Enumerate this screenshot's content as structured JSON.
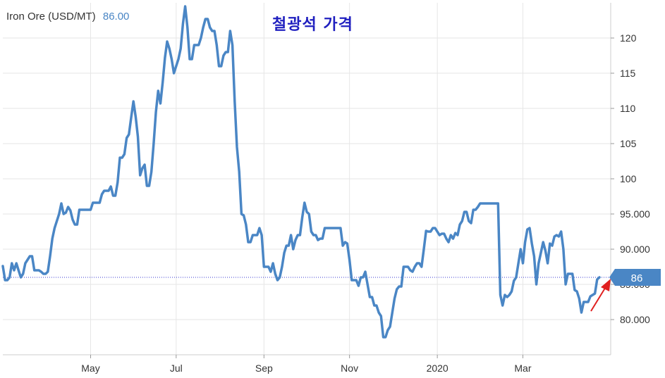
{
  "header": {
    "label": "Iron Ore (USD/MT)",
    "price": "86.00"
  },
  "annotation": {
    "title": "철광석 가격"
  },
  "colors": {
    "line": "#4a86c5",
    "badge": "#4a86c5",
    "grid": "#e6e6e6",
    "reference_line": "#3a3ad0",
    "arrow": "#e02020",
    "title_text": "#1f1fbf"
  },
  "chart_data": {
    "type": "line",
    "title": "Iron Ore (USD/MT)",
    "current_value": 86,
    "current_value_label": "86",
    "ylim": [
      75,
      125
    ],
    "xlim": [
      0,
      265
    ],
    "x_tick_labels": [
      "May",
      "Jul",
      "Sep",
      "Nov",
      "2020",
      "Mar"
    ],
    "x_tick_positions": [
      39,
      77,
      116,
      154,
      193,
      231
    ],
    "y_ticks": [
      {
        "value": 80,
        "label": "80.000"
      },
      {
        "value": 85,
        "label": "85.000"
      },
      {
        "value": 90,
        "label": "90.000"
      },
      {
        "value": 95,
        "label": "95.000"
      },
      {
        "value": 100,
        "label": "100"
      },
      {
        "value": 105,
        "label": "105"
      },
      {
        "value": 110,
        "label": "110"
      },
      {
        "value": 115,
        "label": "115"
      },
      {
        "value": 120,
        "label": "120"
      }
    ],
    "series": [
      {
        "name": "Iron Ore",
        "points": [
          [
            0,
            87.6
          ],
          [
            1,
            85.6
          ],
          [
            2,
            85.6
          ],
          [
            3,
            86.0
          ],
          [
            4,
            88.0
          ],
          [
            5,
            87.0
          ],
          [
            6,
            88.0
          ],
          [
            7,
            87.0
          ],
          [
            8,
            86.0
          ],
          [
            9,
            86.5
          ],
          [
            10,
            88.0
          ],
          [
            11,
            88.5
          ],
          [
            12,
            89.0
          ],
          [
            13,
            89.0
          ],
          [
            14,
            87.0
          ],
          [
            15,
            87.0
          ],
          [
            16,
            87.0
          ],
          [
            17,
            86.8
          ],
          [
            18,
            86.5
          ],
          [
            19,
            86.5
          ],
          [
            20,
            86.8
          ],
          [
            21,
            89.0
          ],
          [
            22,
            91.5
          ],
          [
            23,
            93.0
          ],
          [
            24,
            94.0
          ],
          [
            25,
            95.0
          ],
          [
            26,
            96.5
          ],
          [
            27,
            95.0
          ],
          [
            28,
            95.2
          ],
          [
            29,
            96.0
          ],
          [
            30,
            95.5
          ],
          [
            31,
            94.2
          ],
          [
            32,
            93.5
          ],
          [
            33,
            93.5
          ],
          [
            34,
            95.6
          ],
          [
            35,
            95.6
          ],
          [
            36,
            95.6
          ],
          [
            37,
            95.6
          ],
          [
            38,
            95.6
          ],
          [
            39,
            95.6
          ],
          [
            40,
            96.6
          ],
          [
            41,
            96.6
          ],
          [
            42,
            96.6
          ],
          [
            43,
            96.6
          ],
          [
            44,
            97.8
          ],
          [
            45,
            98.3
          ],
          [
            46,
            98.3
          ],
          [
            47,
            98.3
          ],
          [
            48,
            98.9
          ],
          [
            49,
            97.6
          ],
          [
            50,
            97.6
          ],
          [
            51,
            99.5
          ],
          [
            52,
            103.0
          ],
          [
            53,
            103.0
          ],
          [
            54,
            103.5
          ],
          [
            55,
            105.8
          ],
          [
            56,
            106.3
          ],
          [
            57,
            108.7
          ],
          [
            58,
            111.0
          ],
          [
            59,
            108.8
          ],
          [
            60,
            106.0
          ],
          [
            61,
            100.5
          ],
          [
            62,
            101.5
          ],
          [
            63,
            102.0
          ],
          [
            64,
            99.0
          ],
          [
            65,
            99.0
          ],
          [
            66,
            101.0
          ],
          [
            67,
            105.0
          ],
          [
            68,
            109.5
          ],
          [
            69,
            112.5
          ],
          [
            70,
            110.7
          ],
          [
            71,
            113.7
          ],
          [
            72,
            117.2
          ],
          [
            73,
            119.5
          ],
          [
            74,
            118.5
          ],
          [
            75,
            117.0
          ],
          [
            76,
            115.0
          ],
          [
            77,
            116.0
          ],
          [
            78,
            117.0
          ],
          [
            79,
            118.5
          ],
          [
            80,
            122.0
          ],
          [
            81,
            124.5
          ],
          [
            82,
            121.5
          ],
          [
            83,
            117.0
          ],
          [
            84,
            117.0
          ],
          [
            85,
            119.0
          ],
          [
            86,
            119.0
          ],
          [
            87,
            119.0
          ],
          [
            88,
            120.0
          ],
          [
            89,
            121.5
          ],
          [
            90,
            122.7
          ],
          [
            91,
            122.7
          ],
          [
            92,
            121.5
          ],
          [
            93,
            121.0
          ],
          [
            94,
            121.0
          ],
          [
            95,
            119.0
          ],
          [
            96,
            116.0
          ],
          [
            97,
            116.0
          ],
          [
            98,
            117.5
          ],
          [
            99,
            118.0
          ],
          [
            100,
            118.0
          ],
          [
            101,
            121.0
          ],
          [
            102,
            119.0
          ],
          [
            103,
            111.0
          ],
          [
            104,
            104.5
          ],
          [
            105,
            101.0
          ],
          [
            106,
            95.0
          ],
          [
            107,
            94.8
          ],
          [
            108,
            93.5
          ],
          [
            109,
            91.0
          ],
          [
            110,
            91.0
          ],
          [
            111,
            92.0
          ],
          [
            112,
            92.0
          ],
          [
            113,
            92.0
          ],
          [
            114,
            93.0
          ],
          [
            115,
            92.0
          ],
          [
            116,
            87.5
          ],
          [
            117,
            87.5
          ],
          [
            118,
            87.5
          ],
          [
            119,
            86.8
          ],
          [
            120,
            88.0
          ],
          [
            121,
            86.5
          ],
          [
            122,
            85.6
          ],
          [
            123,
            86.0
          ],
          [
            124,
            87.5
          ],
          [
            125,
            89.5
          ],
          [
            126,
            90.5
          ],
          [
            127,
            90.5
          ],
          [
            128,
            92.0
          ],
          [
            129,
            90.0
          ],
          [
            130,
            91.3
          ],
          [
            131,
            92.0
          ],
          [
            132,
            92.0
          ],
          [
            133,
            94.5
          ],
          [
            134,
            96.6
          ],
          [
            135,
            95.3
          ],
          [
            136,
            95.0
          ],
          [
            137,
            92.5
          ],
          [
            138,
            92.0
          ],
          [
            139,
            92.0
          ],
          [
            140,
            91.3
          ],
          [
            141,
            91.5
          ],
          [
            142,
            91.5
          ],
          [
            143,
            93.0
          ],
          [
            144,
            93.0
          ],
          [
            145,
            93.0
          ],
          [
            146,
            93.0
          ],
          [
            147,
            93.0
          ],
          [
            148,
            93.0
          ],
          [
            149,
            93.0
          ],
          [
            150,
            93.0
          ],
          [
            151,
            90.5
          ],
          [
            152,
            91.0
          ],
          [
            153,
            90.8
          ],
          [
            154,
            88.5
          ],
          [
            155,
            85.6
          ],
          [
            156,
            85.6
          ],
          [
            157,
            85.6
          ],
          [
            158,
            84.8
          ],
          [
            159,
            86.0
          ],
          [
            160,
            86.0
          ],
          [
            161,
            86.8
          ],
          [
            162,
            85.0
          ],
          [
            163,
            83.2
          ],
          [
            164,
            83.2
          ],
          [
            165,
            82.0
          ],
          [
            166,
            82.0
          ],
          [
            167,
            81.0
          ],
          [
            168,
            80.5
          ],
          [
            169,
            77.5
          ],
          [
            170,
            77.5
          ],
          [
            171,
            78.5
          ],
          [
            172,
            79.0
          ],
          [
            173,
            81.0
          ],
          [
            174,
            83.0
          ],
          [
            175,
            84.3
          ],
          [
            176,
            84.7
          ],
          [
            177,
            84.7
          ],
          [
            178,
            87.5
          ],
          [
            179,
            87.5
          ],
          [
            180,
            87.5
          ],
          [
            181,
            87.0
          ],
          [
            182,
            86.8
          ],
          [
            183,
            87.5
          ],
          [
            184,
            88.0
          ],
          [
            185,
            88.0
          ],
          [
            186,
            87.5
          ],
          [
            187,
            90.0
          ],
          [
            188,
            92.6
          ],
          [
            189,
            92.5
          ],
          [
            190,
            92.5
          ],
          [
            191,
            93.0
          ],
          [
            192,
            93.0
          ],
          [
            193,
            92.5
          ],
          [
            194,
            92.0
          ],
          [
            195,
            92.2
          ],
          [
            196,
            92.2
          ],
          [
            197,
            91.5
          ],
          [
            198,
            91.0
          ],
          [
            199,
            92.0
          ],
          [
            200,
            91.5
          ],
          [
            201,
            92.3
          ],
          [
            202,
            92.0
          ],
          [
            203,
            93.5
          ],
          [
            204,
            94.0
          ],
          [
            205,
            95.3
          ],
          [
            206,
            95.3
          ],
          [
            207,
            94.0
          ],
          [
            208,
            93.7
          ],
          [
            209,
            95.6
          ],
          [
            210,
            95.6
          ],
          [
            211,
            96.0
          ],
          [
            212,
            96.5
          ],
          [
            213,
            96.5
          ],
          [
            214,
            96.5
          ],
          [
            215,
            96.5
          ],
          [
            216,
            96.5
          ],
          [
            217,
            96.5
          ],
          [
            218,
            96.5
          ],
          [
            219,
            96.5
          ],
          [
            220,
            96.5
          ],
          [
            221,
            83.5
          ],
          [
            222,
            82.0
          ],
          [
            223,
            83.5
          ],
          [
            224,
            83.2
          ],
          [
            225,
            83.5
          ],
          [
            226,
            84.0
          ],
          [
            227,
            85.5
          ],
          [
            228,
            86.0
          ],
          [
            229,
            88.0
          ],
          [
            230,
            90.0
          ],
          [
            231,
            88.0
          ],
          [
            232,
            91.0
          ],
          [
            233,
            92.8
          ],
          [
            234,
            93.0
          ],
          [
            235,
            90.8
          ],
          [
            236,
            89.0
          ],
          [
            237,
            85.0
          ],
          [
            238,
            88.0
          ],
          [
            239,
            89.5
          ],
          [
            240,
            91.0
          ],
          [
            241,
            89.8
          ],
          [
            242,
            88.0
          ],
          [
            243,
            90.8
          ],
          [
            244,
            90.5
          ],
          [
            245,
            91.8
          ],
          [
            246,
            92.0
          ],
          [
            247,
            91.8
          ],
          [
            248,
            92.5
          ],
          [
            249,
            90.0
          ],
          [
            250,
            85.0
          ],
          [
            251,
            86.5
          ],
          [
            252,
            86.5
          ],
          [
            253,
            86.5
          ],
          [
            254,
            84.2
          ],
          [
            255,
            84.0
          ],
          [
            256,
            83.0
          ],
          [
            257,
            81.0
          ],
          [
            258,
            82.5
          ],
          [
            259,
            82.5
          ],
          [
            260,
            82.5
          ],
          [
            261,
            83.3
          ],
          [
            262,
            83.5
          ],
          [
            263,
            83.7
          ],
          [
            264,
            85.7
          ],
          [
            265,
            86.0
          ]
        ]
      }
    ]
  }
}
